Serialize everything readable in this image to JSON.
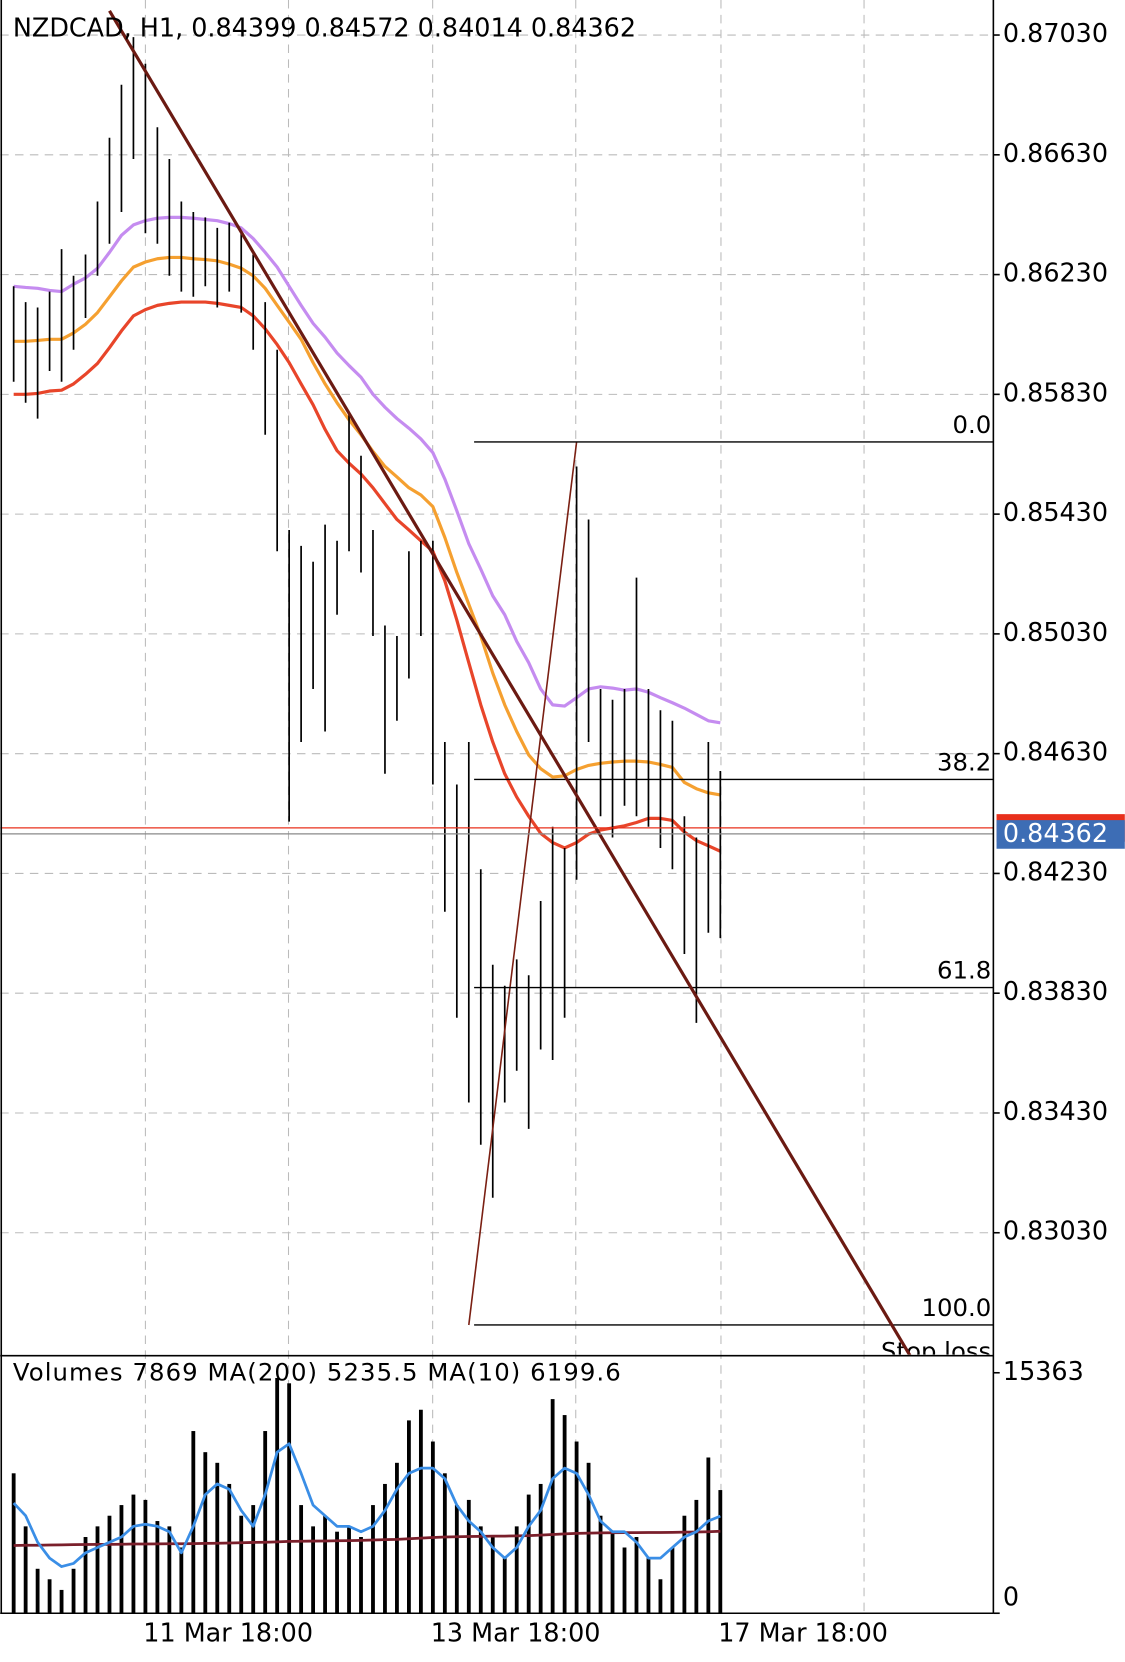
{
  "chart_data": [
    {
      "type": "hl-bar",
      "title": "NZDCAD, H1, 0.84399 0.84572 0.84014 0.84362",
      "categories": [
        null,
        null,
        null,
        null,
        null,
        null,
        null,
        null,
        null,
        null,
        null,
        "11 Mar 18:00",
        null,
        null,
        null,
        null,
        null,
        null,
        null,
        null,
        null,
        null,
        null,
        null,
        null,
        null,
        null,
        null,
        null,
        null,
        null,
        null,
        null,
        null,
        null,
        "13 Mar 18:00",
        null,
        null,
        null,
        null,
        null,
        null,
        null,
        null,
        null,
        null,
        null,
        null,
        null,
        null,
        null,
        null,
        null,
        null,
        null,
        null,
        null,
        null,
        null,
        "17 Mar 18:00"
      ],
      "high": [
        0.86191,
        0.86138,
        0.8612,
        0.86173,
        0.86315,
        0.86226,
        0.86297,
        0.86474,
        0.86687,
        0.86864,
        0.87023,
        0.86934,
        0.86722,
        0.86616,
        0.86474,
        0.86439,
        0.86421,
        0.86386,
        0.86403,
        0.86368,
        0.86297,
        0.86138,
        0.85979,
        0.85377,
        0.85324,
        0.85271,
        0.85395,
        0.85341,
        0.85766,
        0.85625,
        0.85377,
        0.85058,
        0.85023,
        0.85306,
        0.85341,
        0.85341,
        0.84669,
        0.84527,
        0.84669,
        0.84244,
        0.83925,
        0.83855,
        0.83943,
        0.8389,
        0.84138,
        0.84386,
        0.84315,
        0.85589,
        0.85412,
        0.84846,
        0.8481,
        0.84846,
        0.85218,
        0.84846,
        0.84775,
        0.8474,
        0.84421,
        0.8435,
        0.84669,
        0.84572
      ],
      "low": [
        0.85872,
        0.85802,
        0.85749,
        0.85908,
        0.85872,
        0.85979,
        0.86085,
        0.86226,
        0.86333,
        0.86439,
        0.86616,
        0.86368,
        0.86333,
        0.86226,
        0.86173,
        0.86156,
        0.86191,
        0.8612,
        0.86173,
        0.86103,
        0.85979,
        0.85695,
        0.85306,
        0.84403,
        0.84669,
        0.84846,
        0.84704,
        0.85094,
        0.85306,
        0.85235,
        0.85023,
        0.84563,
        0.8474,
        0.84881,
        0.85023,
        0.84527,
        0.84102,
        0.83748,
        0.83465,
        0.83324,
        0.83147,
        0.83465,
        0.83571,
        0.83377,
        0.83642,
        0.83607,
        0.83748,
        0.84209,
        0.84669,
        0.84421,
        0.8435,
        0.84456,
        0.84421,
        0.84386,
        0.84315,
        0.84244,
        0.83961,
        0.83731,
        0.84032,
        0.84014
      ],
      "moving_averages": [
        {
          "color": "#c58cf0",
          "values": [
            0.86191,
            0.86187,
            0.86184,
            0.86177,
            0.86173,
            0.86198,
            0.86219,
            0.86251,
            0.86304,
            0.86361,
            0.86396,
            0.8641,
            0.86418,
            0.86421,
            0.86421,
            0.86418,
            0.86414,
            0.8641,
            0.864,
            0.86386,
            0.8635,
            0.86304,
            0.86255,
            0.86191,
            0.86127,
            0.86067,
            0.86021,
            0.85968,
            0.85926,
            0.85887,
            0.8583,
            0.85787,
            0.85749,
            0.85717,
            0.85681,
            0.85635,
            0.85547,
            0.85441,
            0.85331,
            0.85246,
            0.85157,
            0.85094,
            0.85005,
            0.84934,
            0.84846,
            0.84793,
            0.84789,
            0.84817,
            0.84846,
            0.84853,
            0.84849,
            0.84842,
            0.84846,
            0.84835,
            0.84817,
            0.848,
            0.84782,
            0.84761,
            0.8474,
            0.84733
          ]
        },
        {
          "color": "#f5a030",
          "values": [
            0.86007,
            0.86007,
            0.8601,
            0.86014,
            0.86014,
            0.86035,
            0.86064,
            0.86103,
            0.86156,
            0.86209,
            0.86255,
            0.86272,
            0.86283,
            0.86287,
            0.86287,
            0.86283,
            0.8628,
            0.86276,
            0.86265,
            0.86251,
            0.86226,
            0.86184,
            0.86127,
            0.86071,
            0.86014,
            0.85936,
            0.85865,
            0.85802,
            0.85745,
            0.85695,
            0.85639,
            0.85589,
            0.85554,
            0.85518,
            0.85494,
            0.85455,
            0.85352,
            0.85235,
            0.85129,
            0.85023,
            0.84899,
            0.84793,
            0.84704,
            0.84626,
            0.8458,
            0.84552,
            0.84556,
            0.84577,
            0.84591,
            0.84598,
            0.84602,
            0.84605,
            0.84605,
            0.84602,
            0.84594,
            0.84584,
            0.84534,
            0.84513,
            0.84499,
            0.84492
          ]
        },
        {
          "color": "#e8452a",
          "values": [
            0.8583,
            0.8583,
            0.85833,
            0.85841,
            0.85844,
            0.85865,
            0.85897,
            0.85933,
            0.85986,
            0.86042,
            0.86092,
            0.86113,
            0.86127,
            0.86134,
            0.86138,
            0.86138,
            0.86138,
            0.86134,
            0.86127,
            0.8612,
            0.86092,
            0.86049,
            0.85996,
            0.85936,
            0.85865,
            0.85795,
            0.85713,
            0.85642,
            0.856,
            0.85564,
            0.85518,
            0.85465,
            0.85412,
            0.85377,
            0.85341,
            0.85306,
            0.85207,
            0.85076,
            0.84934,
            0.84793,
            0.84669,
            0.84563,
            0.84485,
            0.84421,
            0.84364,
            0.84333,
            0.84315,
            0.84333,
            0.84361,
            0.84375,
            0.84382,
            0.84389,
            0.844,
            0.84414,
            0.84414,
            0.84407,
            0.84368,
            0.8434,
            0.84322,
            0.84304
          ]
        }
      ],
      "ylim": [
        0.82623,
        0.87147
      ],
      "yticks": [
        {
          "value": 0.8703,
          "label": "0.87030"
        },
        {
          "value": 0.8663,
          "label": "0.86630"
        },
        {
          "value": 0.8623,
          "label": "0.86230"
        },
        {
          "value": 0.8583,
          "label": "0.85830"
        },
        {
          "value": 0.8543,
          "label": "0.85430"
        },
        {
          "value": 0.8503,
          "label": "0.85030"
        },
        {
          "value": 0.8463,
          "label": "0.84630"
        },
        {
          "value": 0.8423,
          "label": "0.84230"
        },
        {
          "value": 0.8383,
          "label": "0.83830"
        },
        {
          "value": 0.8343,
          "label": "0.83430"
        },
        {
          "value": 0.8303,
          "label": "0.83030"
        }
      ],
      "grid": true,
      "last_price": {
        "value": 0.84362,
        "label": "0.84362",
        "color": "#3d6db5"
      },
      "ask_price": 0.84382,
      "ask_color": "#e8301c",
      "fibonacci": {
        "from": {
          "index": 38,
          "price": 0.82722
        },
        "to": {
          "index": 47,
          "price": 0.85671
        },
        "levels": [
          {
            "label": "0.0",
            "price": 0.85671
          },
          {
            "label": "38.2",
            "price": 0.84544
          },
          {
            "label": "61.8",
            "price": 0.83849
          },
          {
            "label": "100.0",
            "price": 0.82722
          }
        ]
      },
      "trendline": {
        "from": {
          "index": 8,
          "price": 0.87111
        },
        "to": {
          "index": 75,
          "price": 0.82609
        },
        "color": "#6b1a12"
      },
      "annotations": [
        "Stop loss"
      ]
    },
    {
      "type": "bar",
      "title": "Volumes",
      "values": [
        8940,
        5550,
        2840,
        2170,
        1490,
        2840,
        4870,
        5550,
        6230,
        6910,
        7580,
        7240,
        5890,
        5550,
        4200,
        11640,
        10290,
        9610,
        8260,
        6230,
        6910,
        11640,
        15030,
        14690,
        6910,
        5550,
        6230,
        5210,
        5550,
        4870,
        6910,
        8260,
        9610,
        12320,
        13000,
        10970,
        8940,
        6910,
        7240,
        5550,
        4870,
        3520,
        5550,
        7580,
        8260,
        13680,
        12660,
        10970,
        9610,
        6230,
        5210,
        4200,
        4870,
        3520,
        2170,
        4200,
        6230,
        7240,
        9950,
        7869
      ],
      "color": "#000000",
      "ylim": [
        0,
        16387
      ],
      "yticks": [
        0,
        15363
      ],
      "series": [
        {
          "name": "MA(200)",
          "color": "#7a1f2b",
          "values": [
            4330,
            4340,
            4350,
            4360,
            4370,
            4380,
            4390,
            4400,
            4400,
            4410,
            4420,
            4420,
            4430,
            4440,
            4440,
            4450,
            4460,
            4470,
            4490,
            4500,
            4520,
            4540,
            4560,
            4590,
            4600,
            4610,
            4620,
            4630,
            4640,
            4660,
            4680,
            4700,
            4720,
            4760,
            4800,
            4840,
            4870,
            4890,
            4900,
            4910,
            4920,
            4930,
            4940,
            4960,
            4990,
            5030,
            5070,
            5100,
            5120,
            5130,
            5140,
            5150,
            5150,
            5160,
            5160,
            5170,
            5180,
            5190,
            5210,
            5235.5
          ]
        },
        {
          "name": "MA(10)",
          "color": "#3a8ee6",
          "values": [
            7040,
            6230,
            4540,
            3520,
            2980,
            3180,
            3860,
            4200,
            4540,
            4870,
            5550,
            5690,
            5550,
            5210,
            3860,
            5550,
            7580,
            8260,
            7920,
            6570,
            5550,
            7580,
            10290,
            10830,
            8940,
            6910,
            6230,
            5550,
            5550,
            5210,
            5550,
            6570,
            7920,
            8940,
            9270,
            9270,
            8600,
            6910,
            5890,
            5210,
            4200,
            3520,
            4200,
            5550,
            6570,
            8600,
            9270,
            8940,
            7580,
            5890,
            5210,
            5210,
            4540,
            3520,
            3520,
            4200,
            4870,
            5210,
            5890,
            6199.6
          ]
        }
      ]
    }
  ]
}
